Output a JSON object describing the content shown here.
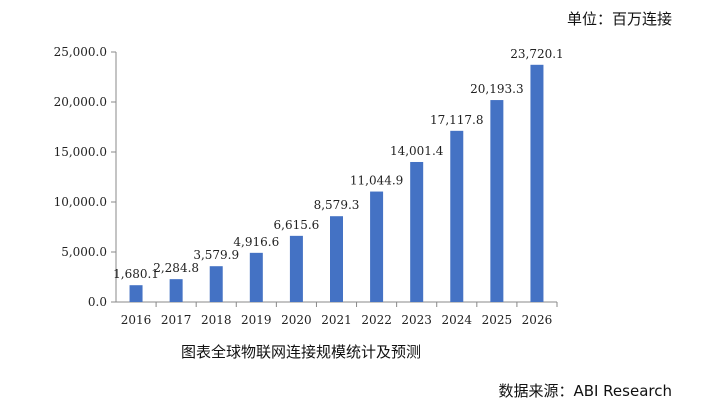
{
  "unit_label": "单位：百万连接",
  "caption": "图表全球物联网连接规模统计及预测",
  "source": "数据来源：ABI Research",
  "colors": {
    "bar": "#4472C4",
    "axis": "#888888"
  },
  "chart_data": {
    "type": "bar",
    "title": "",
    "xlabel": "",
    "ylabel": "",
    "categories": [
      "2016",
      "2017",
      "2018",
      "2019",
      "2020",
      "2021",
      "2022",
      "2023",
      "2024",
      "2025",
      "2026"
    ],
    "values": [
      1680.1,
      2284.8,
      3579.9,
      4916.6,
      6615.6,
      8579.3,
      11044.9,
      14001.4,
      17117.8,
      20193.3,
      23720.1
    ],
    "value_labels": [
      "1,680.1",
      "2,284.8",
      "3,579.9",
      "4,916.6",
      "6,615.6",
      "8,579.3",
      "11,044.9",
      "14,001.4",
      "17,117.8",
      "20,193.3",
      "23,720.1"
    ],
    "yticks": [
      "0.0",
      "5,000.0",
      "10,000.0",
      "15,000.0",
      "20,000.0",
      "25,000.0"
    ],
    "ylim": [
      0,
      25000
    ],
    "grid": false,
    "legend": "none"
  }
}
